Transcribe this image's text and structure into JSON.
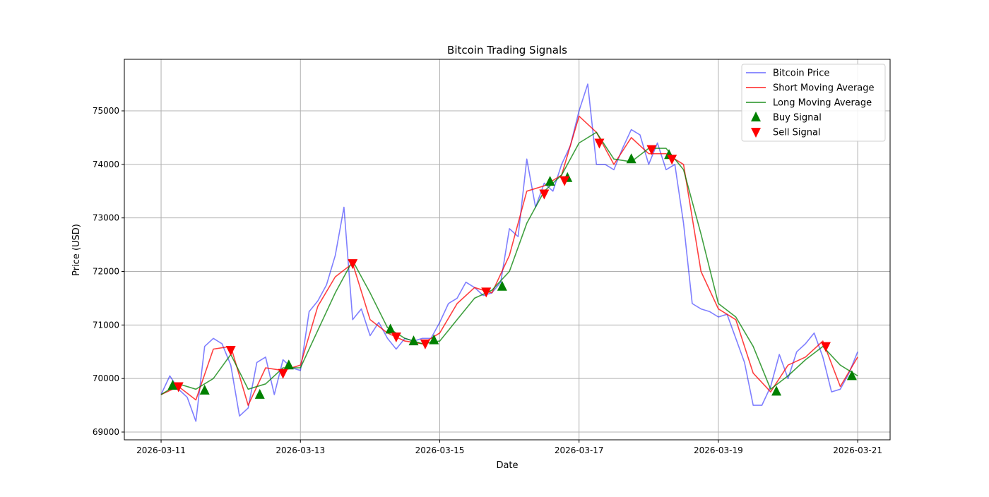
{
  "chart_data": {
    "type": "line",
    "title": "Bitcoin Trading Signals",
    "xlabel": "Date",
    "ylabel": "Price (USD)",
    "xlim": [
      "2026-03-10 11:20",
      "2026-03-21 11:10"
    ],
    "ylim": [
      68855,
      75963
    ],
    "grid": true,
    "legend_position": "top-right",
    "x_ticks": [
      "2026-03-11",
      "2026-03-13",
      "2026-03-15",
      "2026-03-17",
      "2026-03-19",
      "2026-03-21"
    ],
    "y_ticks": [
      69000,
      70000,
      71000,
      72000,
      73000,
      74000,
      75000
    ],
    "series": [
      {
        "name": "Bitcoin Price",
        "color": "#0000ff",
        "opacity": 0.5,
        "x": [
          "2026-03-11 00:00",
          "2026-03-11 03:00",
          "2026-03-11 06:00",
          "2026-03-11 09:00",
          "2026-03-11 12:00",
          "2026-03-11 15:00",
          "2026-03-11 18:00",
          "2026-03-11 21:00",
          "2026-03-12 00:00",
          "2026-03-12 03:00",
          "2026-03-12 06:00",
          "2026-03-12 09:00",
          "2026-03-12 12:00",
          "2026-03-12 15:00",
          "2026-03-12 18:00",
          "2026-03-12 21:00",
          "2026-03-13 00:00",
          "2026-03-13 03:00",
          "2026-03-13 06:00",
          "2026-03-13 09:00",
          "2026-03-13 12:00",
          "2026-03-13 15:00",
          "2026-03-13 18:00",
          "2026-03-13 21:00",
          "2026-03-14 00:00",
          "2026-03-14 03:00",
          "2026-03-14 06:00",
          "2026-03-14 09:00",
          "2026-03-14 12:00",
          "2026-03-14 15:00",
          "2026-03-14 18:00",
          "2026-03-14 21:00",
          "2026-03-15 00:00",
          "2026-03-15 03:00",
          "2026-03-15 06:00",
          "2026-03-15 09:00",
          "2026-03-15 12:00",
          "2026-03-15 15:00",
          "2026-03-15 18:00",
          "2026-03-15 21:00",
          "2026-03-16 00:00",
          "2026-03-16 03:00",
          "2026-03-16 06:00",
          "2026-03-16 09:00",
          "2026-03-16 12:00",
          "2026-03-16 15:00",
          "2026-03-16 18:00",
          "2026-03-16 21:00",
          "2026-03-17 00:00",
          "2026-03-17 03:00",
          "2026-03-17 06:00",
          "2026-03-17 09:00",
          "2026-03-17 12:00",
          "2026-03-17 15:00",
          "2026-03-17 18:00",
          "2026-03-17 21:00",
          "2026-03-18 00:00",
          "2026-03-18 03:00",
          "2026-03-18 06:00",
          "2026-03-18 09:00",
          "2026-03-18 12:00",
          "2026-03-18 15:00",
          "2026-03-18 18:00",
          "2026-03-18 21:00",
          "2026-03-19 00:00",
          "2026-03-19 03:00",
          "2026-03-19 06:00",
          "2026-03-19 09:00",
          "2026-03-19 12:00",
          "2026-03-19 15:00",
          "2026-03-19 18:00",
          "2026-03-19 21:00",
          "2026-03-20 00:00",
          "2026-03-20 03:00",
          "2026-03-20 06:00",
          "2026-03-20 09:00",
          "2026-03-20 12:00",
          "2026-03-20 15:00",
          "2026-03-20 18:00",
          "2026-03-20 21:00",
          "2026-03-21 00:00"
        ],
        "y": [
          69700,
          70050,
          69800,
          69650,
          69200,
          70600,
          70750,
          70650,
          70250,
          69300,
          69450,
          70300,
          70400,
          69700,
          70350,
          70200,
          70150,
          71250,
          71450,
          71750,
          72300,
          73200,
          71100,
          71300,
          70800,
          71050,
          70750,
          70550,
          70750,
          70700,
          70750,
          70750,
          71050,
          71400,
          71500,
          71800,
          71700,
          71550,
          71600,
          71800,
          72800,
          72650,
          74100,
          73200,
          73650,
          73500,
          74000,
          74350,
          75000,
          75500,
          74000,
          74000,
          73900,
          74300,
          74650,
          74550,
          74000,
          74400,
          73900,
          74000,
          72900,
          71400,
          71300,
          71250,
          71150,
          71200,
          70750,
          70300,
          69500,
          69500,
          69850,
          70450,
          70000,
          70500,
          70650,
          70850,
          70400,
          69750,
          69800,
          70100,
          70500
        ]
      },
      {
        "name": "Short Moving Average",
        "color": "#ff0000",
        "opacity": 0.75,
        "x": [
          "2026-03-11 00:00",
          "2026-03-11 06:00",
          "2026-03-11 12:00",
          "2026-03-11 18:00",
          "2026-03-12 00:00",
          "2026-03-12 06:00",
          "2026-03-12 12:00",
          "2026-03-12 18:00",
          "2026-03-13 00:00",
          "2026-03-13 06:00",
          "2026-03-13 12:00",
          "2026-03-13 18:00",
          "2026-03-14 00:00",
          "2026-03-14 06:00",
          "2026-03-14 12:00",
          "2026-03-14 18:00",
          "2026-03-15 00:00",
          "2026-03-15 06:00",
          "2026-03-15 12:00",
          "2026-03-15 18:00",
          "2026-03-16 00:00",
          "2026-03-16 06:00",
          "2026-03-16 12:00",
          "2026-03-16 18:00",
          "2026-03-17 00:00",
          "2026-03-17 06:00",
          "2026-03-17 12:00",
          "2026-03-17 18:00",
          "2026-03-18 00:00",
          "2026-03-18 06:00",
          "2026-03-18 12:00",
          "2026-03-18 18:00",
          "2026-03-19 00:00",
          "2026-03-19 06:00",
          "2026-03-19 12:00",
          "2026-03-19 18:00",
          "2026-03-20 00:00",
          "2026-03-20 06:00",
          "2026-03-20 12:00",
          "2026-03-20 18:00",
          "2026-03-21 00:00"
        ],
        "y": [
          69700,
          69850,
          69600,
          70550,
          70600,
          69500,
          70200,
          70150,
          70250,
          71350,
          71900,
          72150,
          71100,
          70850,
          70700,
          70650,
          70850,
          71400,
          71700,
          71600,
          72300,
          73500,
          73600,
          73800,
          74900,
          74600,
          74000,
          74500,
          74200,
          74200,
          74000,
          72000,
          71300,
          71100,
          70100,
          69750,
          70250,
          70400,
          70700,
          69850,
          70400
        ]
      },
      {
        "name": "Long Moving Average",
        "color": "#008000",
        "opacity": 0.75,
        "x": [
          "2026-03-11 00:00",
          "2026-03-11 06:00",
          "2026-03-11 12:00",
          "2026-03-11 18:00",
          "2026-03-12 00:00",
          "2026-03-12 06:00",
          "2026-03-12 12:00",
          "2026-03-12 18:00",
          "2026-03-13 00:00",
          "2026-03-13 06:00",
          "2026-03-13 12:00",
          "2026-03-13 18:00",
          "2026-03-14 00:00",
          "2026-03-14 06:00",
          "2026-03-14 12:00",
          "2026-03-14 18:00",
          "2026-03-15 00:00",
          "2026-03-15 06:00",
          "2026-03-15 12:00",
          "2026-03-15 18:00",
          "2026-03-16 00:00",
          "2026-03-16 06:00",
          "2026-03-16 12:00",
          "2026-03-16 18:00",
          "2026-03-17 00:00",
          "2026-03-17 06:00",
          "2026-03-17 12:00",
          "2026-03-17 18:00",
          "2026-03-18 00:00",
          "2026-03-18 06:00",
          "2026-03-18 12:00",
          "2026-03-18 18:00",
          "2026-03-19 00:00",
          "2026-03-19 06:00",
          "2026-03-19 12:00",
          "2026-03-19 18:00",
          "2026-03-20 00:00",
          "2026-03-20 06:00",
          "2026-03-20 12:00",
          "2026-03-20 18:00",
          "2026-03-21 00:00"
        ],
        "y": [
          69700,
          69900,
          69800,
          70000,
          70450,
          69800,
          69900,
          70200,
          70200,
          70900,
          71600,
          72200,
          71600,
          70950,
          70750,
          70650,
          70700,
          71100,
          71500,
          71650,
          72000,
          72900,
          73500,
          73800,
          74400,
          74600,
          74100,
          74050,
          74300,
          74300,
          73900,
          72700,
          71400,
          71150,
          70600,
          69800,
          70050,
          70350,
          70600,
          70250,
          70050
        ]
      }
    ],
    "signals": {
      "buy": {
        "name": "Buy Signal",
        "color": "#008000",
        "marker": "triangle-up",
        "points": [
          [
            "2026-03-11 04:00",
            69870
          ],
          [
            "2026-03-11 15:00",
            69780
          ],
          [
            "2026-03-12 10:00",
            69700
          ],
          [
            "2026-03-12 20:00",
            70250
          ],
          [
            "2026-03-14 07:00",
            70920
          ],
          [
            "2026-03-14 15:00",
            70700
          ],
          [
            "2026-03-14 22:00",
            70720
          ],
          [
            "2026-03-15 21:30",
            71720
          ],
          [
            "2026-03-16 14:00",
            73680
          ],
          [
            "2026-03-16 20:00",
            73750
          ],
          [
            "2026-03-17 18:00",
            74100
          ],
          [
            "2026-03-18 07:00",
            74180
          ],
          [
            "2026-03-19 20:00",
            69760
          ],
          [
            "2026-03-20 22:00",
            70050
          ]
        ]
      },
      "sell": {
        "name": "Sell Signal",
        "color": "#ff0000",
        "marker": "triangle-down",
        "points": [
          [
            "2026-03-11 06:00",
            69850
          ],
          [
            "2026-03-12 00:00",
            70530
          ],
          [
            "2026-03-12 18:00",
            70100
          ],
          [
            "2026-03-13 18:00",
            72150
          ],
          [
            "2026-03-14 09:00",
            70780
          ],
          [
            "2026-03-14 19:00",
            70650
          ],
          [
            "2026-03-15 16:00",
            71620
          ],
          [
            "2026-03-16 12:00",
            73450
          ],
          [
            "2026-03-16 19:00",
            73700
          ],
          [
            "2026-03-17 07:00",
            74400
          ],
          [
            "2026-03-18 01:00",
            74280
          ],
          [
            "2026-03-18 08:00",
            74100
          ],
          [
            "2026-03-20 13:00",
            70600
          ]
        ]
      }
    }
  }
}
